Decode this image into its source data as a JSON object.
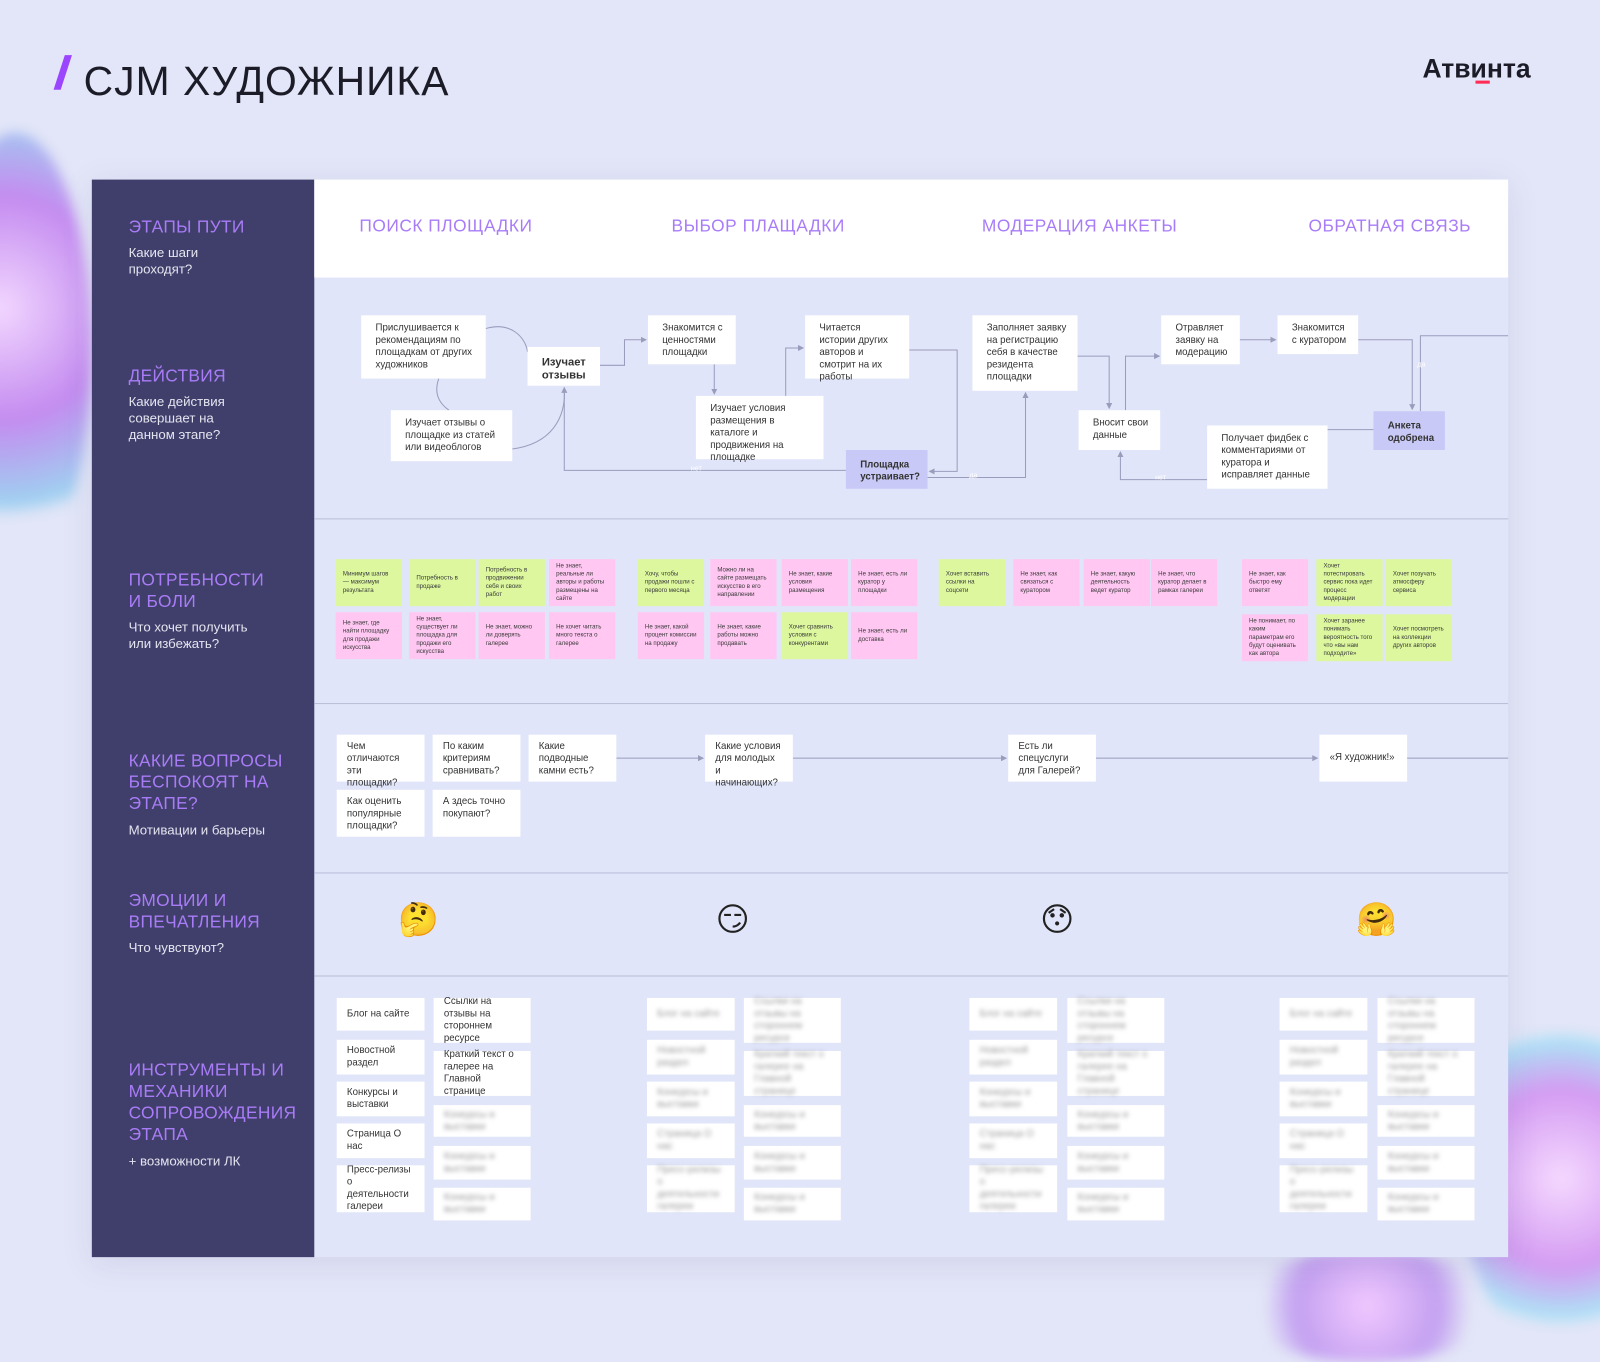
{
  "title": "CJM ХУДОЖНИКА",
  "logo": "Атвинта",
  "colors": {
    "accent": "#a97cf7",
    "sidebar": "#403f6b",
    "need_green": "#dcf79e",
    "pain_pink": "#ffc7f2",
    "decision": "#c9c9f7"
  },
  "rows": [
    {
      "title": "ЭТАПЫ ПУТИ",
      "subtitle": "Какие шаги проходят?"
    },
    {
      "title": "ДЕЙСТВИЯ",
      "subtitle": "Какие действия совершает на данном этапе?"
    },
    {
      "title": "ПОТРЕБНОСТИ И БОЛИ",
      "subtitle": "Что хочет получить или избежать?"
    },
    {
      "title": "КАКИЕ ВОПРОСЫ БЕСПОКОЯТ НА ЭТАПЕ?",
      "subtitle": "Мотивации и барьеры"
    },
    {
      "title": "ЭМОЦИИ И ВПЕЧАТЛЕНИЯ",
      "subtitle": "Что чувствуют?"
    },
    {
      "title": "ИНСТРУМЕНТЫ И МЕХАНИКИ СОПРОВОЖДЕНИЯ ЭТАПА",
      "subtitle": "+ возможности ЛК"
    }
  ],
  "stages": [
    "ПОИСК ПЛОЩАДКИ",
    "ВЫБОР ПЛАЩАДКИ",
    "МОДЕРАЦИЯ АНКЕТЫ",
    "ОБРАТНАЯ СВЯЗЬ"
  ],
  "actions": [
    {
      "text": "Прислушивается к рекомендациям по площадкам от других художников",
      "kind": "normal"
    },
    {
      "text": "Изучает отзывы",
      "kind": "bold"
    },
    {
      "text": "Изучает отзывы о площадке из статей или видеоблогов",
      "kind": "normal"
    },
    {
      "text": "Знакомится с ценностями площадки",
      "kind": "normal"
    },
    {
      "text": "Изучает условия размещения в каталоге и продвижения на площадке",
      "kind": "normal"
    },
    {
      "text": "Читается истории других авторов и смотрит на их работы",
      "kind": "normal"
    },
    {
      "text": "Площадка устраивает?",
      "kind": "decision"
    },
    {
      "text": "Заполняет заявку на регистрацию себя в качестве резидента площадки",
      "kind": "normal"
    },
    {
      "text": "Вносит свои данные",
      "kind": "normal"
    },
    {
      "text": "Отравляет заявку на модерацию",
      "kind": "normal"
    },
    {
      "text": "Знакомится с куратором",
      "kind": "normal"
    },
    {
      "text": "Получает фидбек с комментариями от куратора и исправляет данные",
      "kind": "normal"
    },
    {
      "text": "Анкета одобрена",
      "kind": "decision"
    }
  ],
  "connector_labels": [
    "нет",
    "да",
    "да",
    "нет"
  ],
  "needs": [
    {
      "text": "Минимум шагов — максимум результата",
      "type": "need"
    },
    {
      "text": "Потребность в продаже",
      "type": "need"
    },
    {
      "text": "Потребность в продвижении себя и своих работ",
      "type": "need"
    },
    {
      "text": "Не знает, реальные ли авторы и работы размещены на сайте",
      "type": "pain"
    },
    {
      "text": "Не знает, где найти площадку для продажи искусства",
      "type": "pain"
    },
    {
      "text": "Не знает, существует ли площадка для продажи его искусства",
      "type": "pain"
    },
    {
      "text": "Не знает, можно ли доверять галерее",
      "type": "pain"
    },
    {
      "text": "Не хочет читать много текста о галерее",
      "type": "pain"
    },
    {
      "text": "Хочу, чтобы продажи пошли с первого месяца",
      "type": "need"
    },
    {
      "text": "Можно ли на сайте размещать искусство в его направлении",
      "type": "pain"
    },
    {
      "text": "Не знает, какие условия размещения",
      "type": "pain"
    },
    {
      "text": "Не знает, есть ли куратор у площадки",
      "type": "pain"
    },
    {
      "text": "Не знает, какой процент комиссии на продажу",
      "type": "pain"
    },
    {
      "text": "Не знает, какие работы можно продавать",
      "type": "pain"
    },
    {
      "text": "Хочет сравнить условия с конкурентами",
      "type": "need"
    },
    {
      "text": "Не знает, есть ли доставка",
      "type": "pain"
    },
    {
      "text": "Хочет вставить ссылки на соцсети",
      "type": "need"
    },
    {
      "text": "Не знает, как связаться с куратором",
      "type": "pain"
    },
    {
      "text": "Не знает, какую деятельность ведет куратор",
      "type": "pain"
    },
    {
      "text": "Не знает, что куратор делает в рамках галереи",
      "type": "pain"
    },
    {
      "text": "Не знает, как быстро ему ответят",
      "type": "pain"
    },
    {
      "text": "Хочет потестировать сервис пока идет процесс модерации",
      "type": "need"
    },
    {
      "text": "Хочет позучать атмосферу сервиса",
      "type": "need"
    },
    {
      "text": "Не понимает, по каким параметрам его будут оценивать как автора",
      "type": "pain"
    },
    {
      "text": "Хочет заранее понимать вероятность того что «вы нам подходите»",
      "type": "need"
    },
    {
      "text": "Хочет посмотреть на коллекции других авторов",
      "type": "need"
    }
  ],
  "questions": [
    "Чем отличаются эти площадки?",
    "Как оценить популярные площадки?",
    "По каким критериям сравнивать?",
    "А здесь точно покупают?",
    "Какие подводные камни есть?",
    "Какие условия для молодых и начинающих?",
    "Есть ли спецуслуги для Галерей?",
    "«Я художник!»"
  ],
  "emotions": [
    {
      "emoji": "🤔",
      "icon": "thinking-face"
    },
    {
      "emoji": "😏",
      "icon": "smirking-face"
    },
    {
      "emoji": "😯",
      "icon": "hushed-face"
    },
    {
      "emoji": "🤗",
      "icon": "hugging-face"
    }
  ],
  "tools": {
    "col_a": [
      "Блог на сайте",
      "Новостной раздел",
      "Конкурсы и выставки",
      "Страница О нас",
      "Пресс-релизы о деятельности галереи"
    ],
    "col_b": [
      "Ссылки на отзывы на стороннем ресурсе",
      "Краткий текст о галерее на Главной странице",
      "Конкурсы и выставки",
      "Конкурсы и выставки",
      "Конкурсы и выставки"
    ]
  }
}
